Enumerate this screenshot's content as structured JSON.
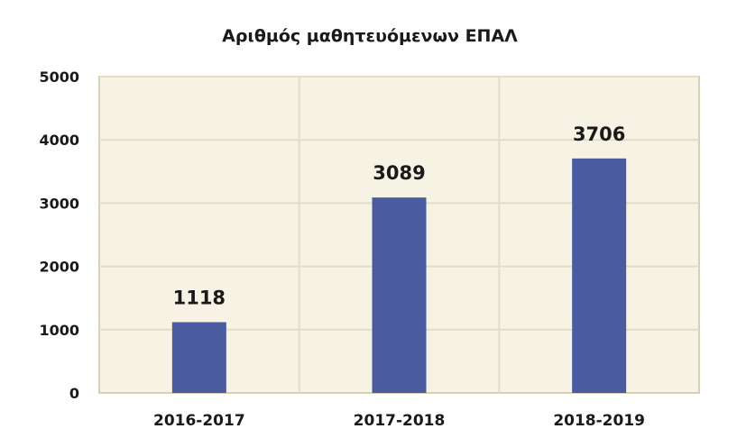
{
  "chart_data": {
    "type": "bar",
    "title": "Αριθμός μαθητευόμενων ΕΠΑΛ",
    "categories": [
      "2016-2017",
      "2017-2018",
      "2018-2019"
    ],
    "values": [
      1118,
      3089,
      3706
    ],
    "data_labels": [
      "1118",
      "3089",
      "3706"
    ],
    "ylim": [
      0,
      5000
    ],
    "yticks": [
      0,
      1000,
      2000,
      3000,
      4000,
      5000
    ],
    "ytick_labels": [
      "0",
      "1000",
      "2000",
      "3000",
      "4000",
      "5000"
    ],
    "grid": true,
    "legend": "none",
    "colors": {
      "bar": "#4a5ba0",
      "plot_background": "#f7f3e4",
      "grid": "#e4dcc3",
      "frame": "#d9d0b4"
    }
  }
}
